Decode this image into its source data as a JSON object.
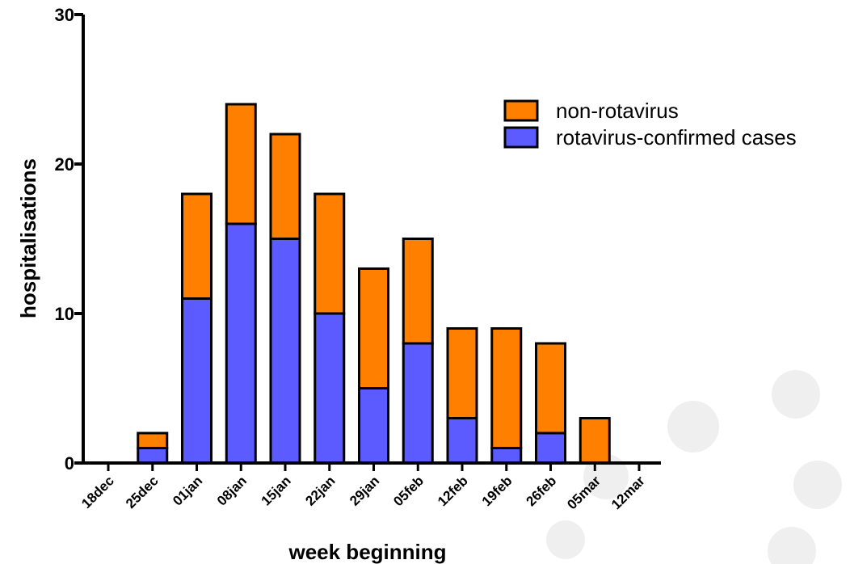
{
  "chart_data": {
    "type": "bar",
    "stacked": true,
    "xlabel": "week beginning",
    "ylabel": "hospitalisations",
    "ylim": [
      0,
      30
    ],
    "yticks": [
      0,
      10,
      20,
      30
    ],
    "grid": false,
    "legend_position": "top-right",
    "categories": [
      "18dec",
      "25dec",
      "01jan",
      "08jan",
      "15jan",
      "22jan",
      "29jan",
      "05feb",
      "12feb",
      "19feb",
      "26feb",
      "05mar",
      "12mar"
    ],
    "series": [
      {
        "name": "rotavirus-confirmed cases",
        "color": "#5b5bff",
        "values": [
          0,
          1,
          11,
          16,
          15,
          10,
          5,
          8,
          3,
          1,
          2,
          0,
          0
        ]
      },
      {
        "name": "non-rotavirus",
        "color": "#ff8000",
        "values": [
          0,
          1,
          7,
          8,
          7,
          8,
          8,
          7,
          6,
          8,
          6,
          3,
          0
        ]
      }
    ],
    "legend_order": [
      "non-rotavirus",
      "rotavirus-confirmed cases"
    ]
  },
  "colors": {
    "background_dots": "#efefef"
  }
}
